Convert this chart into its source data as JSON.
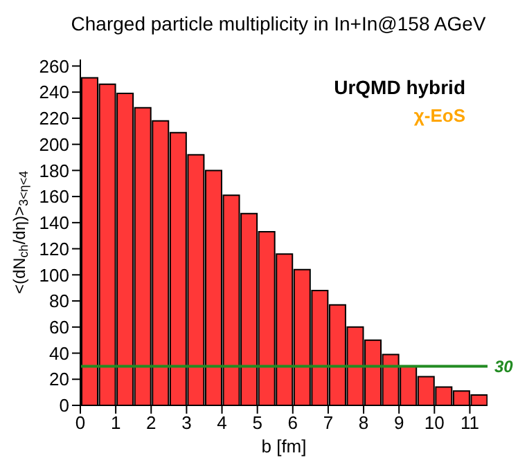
{
  "chart_data": {
    "type": "histogram",
    "title": "Charged particle multiplicity in In+In@158 AGeV",
    "xlabel": "b [fm]",
    "ylabel": "<(dN$_{ch}$/dη)>$_{3<η<4}$",
    "bins": [
      0,
      0.5,
      1,
      1.5,
      2,
      2.5,
      3,
      3.5,
      4,
      4.5,
      5,
      5.5,
      6,
      6.5,
      7,
      7.5,
      8,
      8.5,
      9,
      9.5,
      10,
      10.5,
      11,
      11.5
    ],
    "values": [
      251,
      246,
      239,
      228,
      218,
      209,
      192,
      180,
      161,
      147,
      133,
      116,
      104,
      88,
      77,
      60,
      50,
      39,
      30,
      22,
      14,
      11,
      8
    ],
    "color": "#ff3838",
    "xlim": [
      0,
      11.5
    ],
    "xticks": [
      0,
      1,
      2,
      3,
      4,
      5,
      6,
      7,
      8,
      9,
      10,
      11
    ],
    "ylim": [
      0,
      265
    ],
    "yticks": [
      0,
      20,
      40,
      60,
      80,
      100,
      120,
      140,
      160,
      180,
      200,
      220,
      240,
      260
    ],
    "ref_lines": [
      {
        "axis": "y",
        "value": 30,
        "label": "30",
        "color": "#228b22"
      }
    ],
    "annotations": [
      "UrQMD hybrid",
      "χ-EoS"
    ]
  }
}
